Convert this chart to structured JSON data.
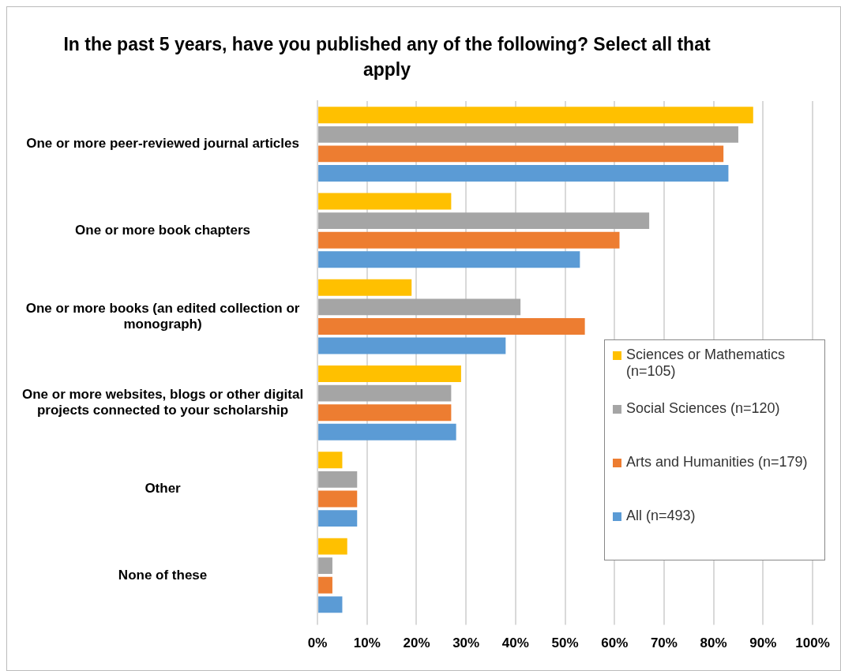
{
  "chart_data": {
    "type": "bar",
    "orientation": "horizontal",
    "title": "In the past 5 years, have you published any of the following? Select all that apply",
    "categories": [
      "One or more peer-reviewed journal articles",
      "One or more book chapters",
      "One or more books (an edited collection or monograph)",
      "One or more websites, blogs or other digital projects connected to your scholarship",
      "Other",
      "None of these"
    ],
    "series": [
      {
        "name": "Sciences or Mathematics (n=105)",
        "color": "#ffc000",
        "values": [
          88,
          27,
          19,
          29,
          5,
          6
        ]
      },
      {
        "name": "Social Sciences (n=120)",
        "color": "#a5a5a5",
        "values": [
          85,
          67,
          41,
          27,
          8,
          3
        ]
      },
      {
        "name": "Arts and Humanities (n=179)",
        "color": "#ed7d31",
        "values": [
          82,
          61,
          54,
          27,
          8,
          3
        ]
      },
      {
        "name": "All (n=493)",
        "color": "#5b9bd5",
        "values": [
          83,
          53,
          38,
          28,
          8,
          5
        ]
      }
    ],
    "xlim": [
      0,
      100
    ],
    "xticks": [
      {
        "value": 0,
        "label": "0%"
      },
      {
        "value": 10,
        "label": "10%"
      },
      {
        "value": 20,
        "label": "20%"
      },
      {
        "value": 30,
        "label": "30%"
      },
      {
        "value": 40,
        "label": "40%"
      },
      {
        "value": 50,
        "label": "50%"
      },
      {
        "value": 60,
        "label": "60%"
      },
      {
        "value": 70,
        "label": "70%"
      },
      {
        "value": 80,
        "label": "80%"
      },
      {
        "value": 90,
        "label": "90%"
      },
      {
        "value": 100,
        "label": "100%"
      }
    ],
    "grid": "x",
    "legend": "right"
  }
}
